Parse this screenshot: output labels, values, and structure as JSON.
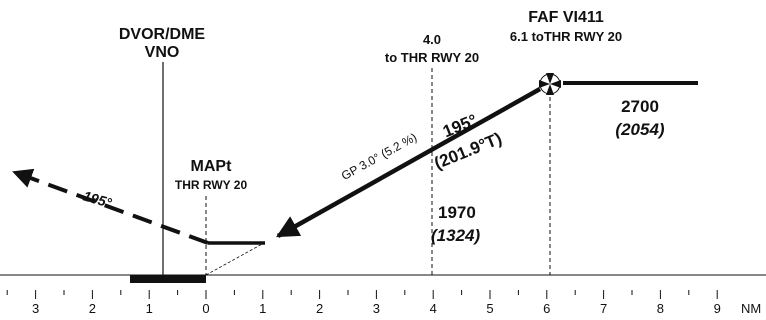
{
  "navaid": {
    "line1": "DVOR/DME",
    "line2": "VNO"
  },
  "mapt": {
    "line1": "MAPt",
    "line2": "THR RWY 20"
  },
  "fix_4nm": {
    "line1": "4.0",
    "line2": "to THR RWY 20"
  },
  "faf": {
    "line1": "FAF VI411",
    "line2": "6.1 toTHR RWY 20"
  },
  "glidepath_label": "GP 3.0° (5.2 %)",
  "final_track": {
    "line1": "195°",
    "line2": "(201.9°T)"
  },
  "missed_track": "195°",
  "altitude_faf": {
    "value": "2700",
    "height": "(2054)"
  },
  "altitude_4nm": {
    "value": "1970",
    "height": "(1324)"
  },
  "axis": {
    "ticks": [
      {
        "nm": -3,
        "label": "3"
      },
      {
        "nm": -2,
        "label": "2"
      },
      {
        "nm": -1,
        "label": "1"
      },
      {
        "nm": 0,
        "label": "0"
      },
      {
        "nm": 1,
        "label": "1"
      },
      {
        "nm": 2,
        "label": "2"
      },
      {
        "nm": 3,
        "label": "3"
      },
      {
        "nm": 4,
        "label": "4"
      },
      {
        "nm": 5,
        "label": "5"
      },
      {
        "nm": 6,
        "label": "6"
      },
      {
        "nm": 7,
        "label": "7"
      },
      {
        "nm": 8,
        "label": "8"
      },
      {
        "nm": 9,
        "label": "9"
      }
    ],
    "unit": "NM"
  }
}
